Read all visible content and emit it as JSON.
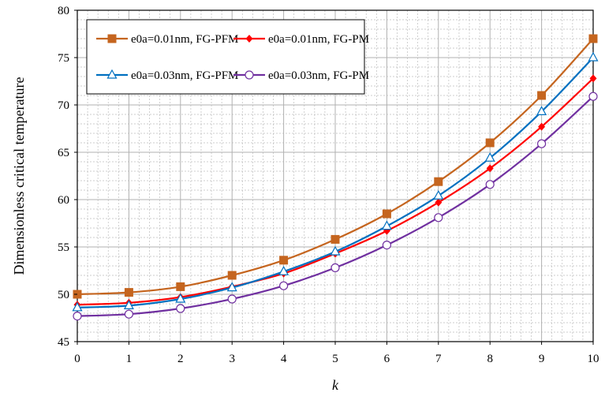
{
  "chart_data": {
    "type": "line",
    "title": "",
    "xlabel": "k",
    "ylabel": "Dimensionless critical temperature",
    "x": [
      0,
      1,
      2,
      3,
      4,
      5,
      6,
      7,
      8,
      9,
      10
    ],
    "xlim": [
      0,
      10
    ],
    "ylim": [
      45,
      80
    ],
    "x_ticks": [
      "0",
      "1",
      "2",
      "3",
      "4",
      "5",
      "6",
      "7",
      "8",
      "9",
      "10"
    ],
    "y_ticks": [
      "45",
      "50",
      "55",
      "60",
      "65",
      "70",
      "75",
      "80"
    ],
    "grid": true,
    "legend_position": "top-left",
    "series": [
      {
        "name": "e0a=0.01nm, FG-PFM",
        "color": "#c5651f",
        "marker": "square-filled",
        "values": [
          50.0,
          50.2,
          50.8,
          52.0,
          53.6,
          55.8,
          58.5,
          61.9,
          66.0,
          71.0,
          77.0
        ]
      },
      {
        "name": "e0a=0.01nm, FG-PM",
        "color": "#ff0000",
        "marker": "diamond-filled",
        "values": [
          48.9,
          49.1,
          49.7,
          50.8,
          52.2,
          54.3,
          56.7,
          59.7,
          63.3,
          67.7,
          72.8
        ]
      },
      {
        "name": "e0a=0.03nm, FG-PFM",
        "color": "#0070c0",
        "marker": "triangle-open",
        "values": [
          48.6,
          48.8,
          49.5,
          50.7,
          52.4,
          54.5,
          57.2,
          60.4,
          64.4,
          69.3,
          75.0
        ]
      },
      {
        "name": "e0a=0.03nm, FG-PM",
        "color": "#7030a0",
        "marker": "circle-open",
        "values": [
          47.7,
          47.9,
          48.5,
          49.5,
          50.9,
          52.8,
          55.2,
          58.1,
          61.6,
          65.9,
          70.9
        ]
      }
    ]
  }
}
